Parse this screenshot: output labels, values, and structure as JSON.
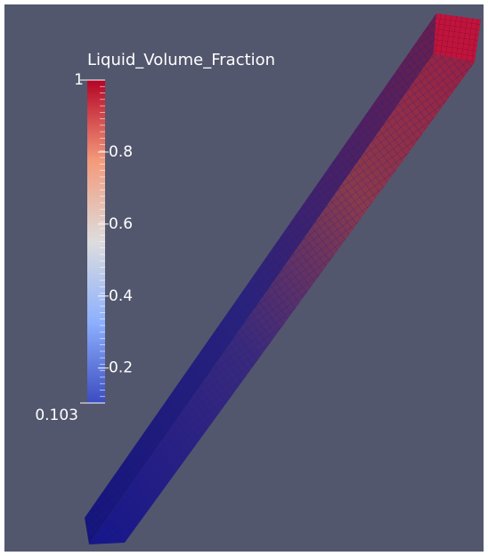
{
  "colorbar": {
    "title": "Liquid_Volume_Fraction",
    "min": 0.103,
    "max": 1,
    "ticks": [
      0.2,
      0.4,
      0.6,
      0.8
    ]
  }
}
